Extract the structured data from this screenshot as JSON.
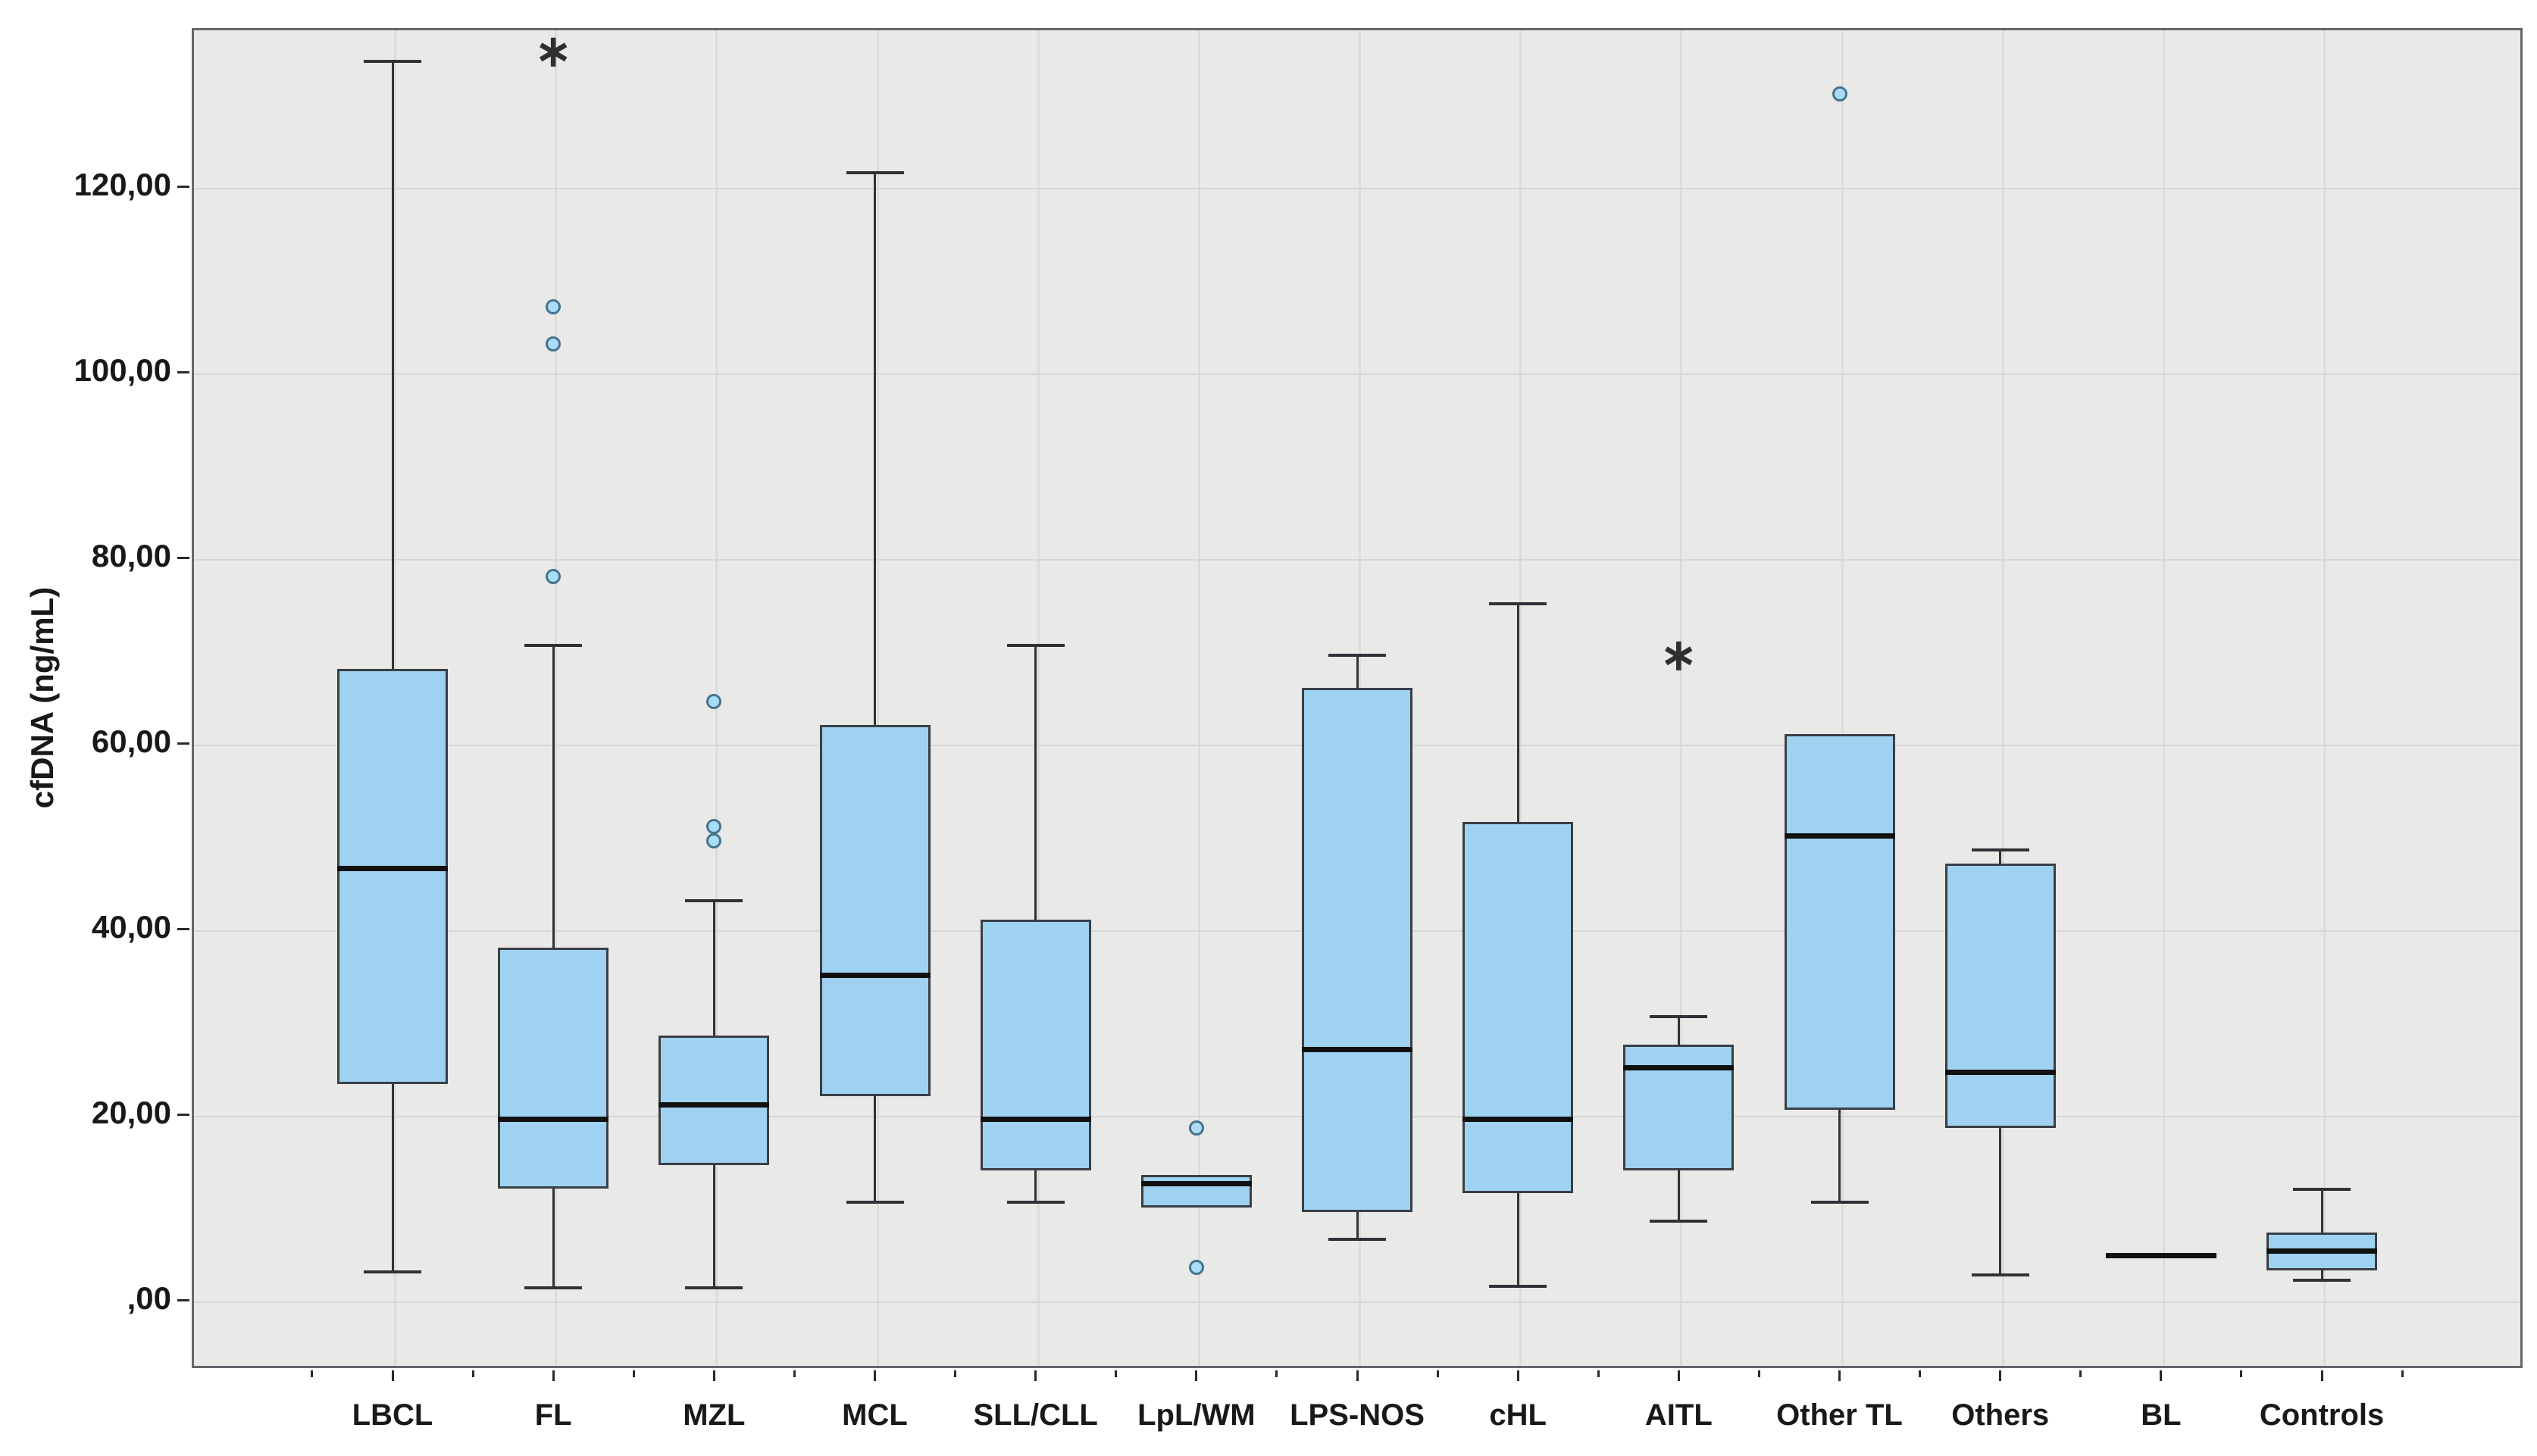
{
  "chart_data": {
    "type": "boxplot",
    "title": "",
    "ylabel": "cfDNA (ng/mL)",
    "xlabel": "",
    "ylim": [
      -7.3,
      137.1
    ],
    "grid": true,
    "legend_position": "none",
    "yticks": [
      {
        "value": 0,
        "label": ",00"
      },
      {
        "value": 20,
        "label": "20,00"
      },
      {
        "value": 40,
        "label": "40,00"
      },
      {
        "value": 60,
        "label": "60,00"
      },
      {
        "value": 80,
        "label": "80,00"
      },
      {
        "value": 100,
        "label": "100,00"
      },
      {
        "value": 120,
        "label": "120,00"
      }
    ],
    "categories": [
      "LBCL",
      "FL",
      "MZL",
      "MCL",
      "SLL/CLL",
      "LpL/WM",
      "LPS-NOS",
      "cHL",
      "AITL",
      "Other TL",
      "Others",
      "BL",
      "Controls"
    ],
    "series": [
      {
        "category": "LBCL",
        "min": 3,
        "q1": 23.3,
        "median": 46.5,
        "q3": 68,
        "max": 133.5,
        "outliers": [],
        "extremes": []
      },
      {
        "category": "FL",
        "min": 1.3,
        "q1": 12,
        "median": 19.5,
        "q3": 38,
        "max": 70.5,
        "outliers": [
          78,
          103,
          107
        ],
        "extremes": [
          134.5
        ]
      },
      {
        "category": "MZL",
        "min": 1.3,
        "q1": 14.5,
        "median": 21,
        "q3": 28.5,
        "max": 43,
        "outliers": [
          49.5,
          51,
          64.5
        ],
        "extremes": []
      },
      {
        "category": "MCL",
        "min": 10.5,
        "q1": 22,
        "median": 35,
        "q3": 62,
        "max": 121.5,
        "outliers": [],
        "extremes": []
      },
      {
        "category": "SLL/CLL",
        "min": 10.5,
        "q1": 14,
        "median": 19.5,
        "q3": 41,
        "max": 70.5,
        "outliers": [],
        "extremes": []
      },
      {
        "category": "LpL/WM",
        "min": 10,
        "q1": 10,
        "median": 12.5,
        "q3": 13.5,
        "max": 13.5,
        "outliers": [
          3.5,
          18.5
        ],
        "extremes": []
      },
      {
        "category": "LPS-NOS",
        "min": 6.5,
        "q1": 9.5,
        "median": 27,
        "q3": 66,
        "max": 69.5,
        "outliers": [],
        "extremes": []
      },
      {
        "category": "cHL",
        "min": 1.5,
        "q1": 11.5,
        "median": 19.5,
        "q3": 51.5,
        "max": 75,
        "outliers": [],
        "extremes": []
      },
      {
        "category": "AITL",
        "min": 8.5,
        "q1": 14,
        "median": 25,
        "q3": 27.5,
        "max": 30.5,
        "outliers": [],
        "extremes": [
          69.5
        ]
      },
      {
        "category": "Other TL",
        "min": 10.5,
        "q1": 20.5,
        "median": 50,
        "q3": 61,
        "max": 61,
        "outliers": [
          130
        ],
        "extremes": []
      },
      {
        "category": "Others",
        "min": 2.7,
        "q1": 18.5,
        "median": 24.5,
        "q3": 47,
        "max": 48.5,
        "outliers": [],
        "extremes": []
      },
      {
        "category": "BL",
        "min": 4.8,
        "q1": 4.8,
        "median": 4.8,
        "q3": 4.8,
        "max": 4.8,
        "outliers": [],
        "extremes": []
      },
      {
        "category": "Controls",
        "min": 2.1,
        "q1": 3.2,
        "median": 5.3,
        "q3": 7.3,
        "max": 11.9,
        "outliers": [],
        "extremes": []
      }
    ],
    "markers": {
      "outlier_symbol": "circle",
      "extreme_symbol": "∗"
    }
  },
  "colors": {
    "box_fill": "#9fd1f1",
    "box_border": "#3a3f46",
    "median": "#111111",
    "whisker": "#2f3338",
    "outlier_fill": "#aadcf5",
    "outlier_border": "#46748f",
    "extreme": "#2f2f2f",
    "plot_bg": "#e9e9e8",
    "grid_h": "#d7d7d5",
    "grid_v": "#dcdcda",
    "axis_border": "#64676b",
    "tick": "#2a2a2a",
    "label": "#191919",
    "page_bg": "#ffffff"
  }
}
